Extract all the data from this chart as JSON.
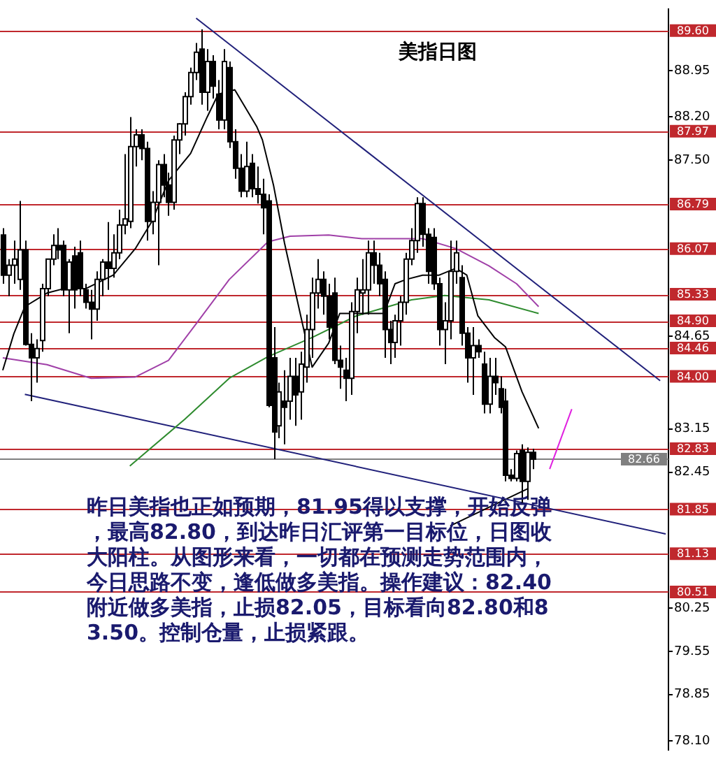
{
  "chart_data": {
    "type": "candlestick",
    "title": "美指日图",
    "categories": [
      null,
      null,
      null,
      null,
      null,
      null,
      null,
      null,
      null,
      null,
      null,
      null,
      null,
      null,
      null,
      null,
      null,
      null,
      null,
      null,
      null,
      null,
      null,
      null,
      null,
      null,
      null,
      null,
      null,
      null,
      null,
      null,
      null,
      null,
      null,
      null,
      null,
      null,
      null,
      null,
      null,
      null,
      null,
      null,
      null,
      null,
      null,
      null,
      null,
      null,
      null,
      null,
      null,
      null,
      null,
      null,
      null,
      null,
      null,
      null,
      null,
      null,
      null,
      null,
      null,
      null,
      null,
      null,
      null,
      null,
      null,
      null,
      null,
      null,
      null,
      null,
      null,
      null,
      null,
      null,
      null,
      null,
      null,
      null,
      null,
      null,
      null,
      null,
      null,
      null,
      null,
      null,
      null,
      null,
      null,
      null,
      null,
      null,
      null,
      null,
      null,
      null,
      null,
      null,
      null,
      null,
      null,
      null,
      null,
      null,
      null,
      null,
      null,
      null,
      null,
      null,
      null,
      null,
      null,
      null,
      null
    ],
    "ohlc": [
      [
        86.29,
        86.4,
        85.5,
        85.64
      ],
      [
        85.64,
        85.9,
        85.3,
        85.8
      ],
      [
        85.8,
        86.2,
        85.5,
        85.9
      ],
      [
        85.57,
        86.84,
        85.4,
        86.05
      ],
      [
        86.05,
        86.2,
        84.5,
        84.52
      ],
      [
        84.52,
        84.7,
        83.6,
        84.3
      ],
      [
        84.3,
        84.6,
        83.9,
        84.45
      ],
      [
        84.58,
        85.5,
        84.4,
        85.42
      ],
      [
        85.42,
        85.9,
        85.3,
        85.9
      ],
      [
        85.9,
        86.3,
        85.8,
        86.12
      ],
      [
        86.12,
        86.4,
        85.9,
        86.05
      ],
      [
        86.12,
        86.2,
        85.3,
        85.4
      ],
      [
        85.4,
        85.9,
        84.7,
        85.85
      ],
      [
        85.95,
        86.1,
        85.1,
        85.4
      ],
      [
        86.0,
        86.2,
        85.3,
        85.42
      ],
      [
        85.4,
        85.5,
        85.1,
        85.2
      ],
      [
        85.2,
        85.4,
        84.6,
        85.09
      ],
      [
        85.09,
        85.7,
        84.9,
        85.57
      ],
      [
        85.57,
        85.9,
        85.3,
        85.85
      ],
      [
        85.85,
        86.5,
        85.4,
        85.75
      ],
      [
        85.75,
        86.3,
        85.6,
        86.0
      ],
      [
        86.0,
        86.7,
        85.9,
        86.45
      ],
      [
        86.45,
        87.6,
        86.3,
        86.55
      ],
      [
        86.51,
        88.2,
        86.4,
        87.72
      ],
      [
        87.72,
        88.0,
        87.4,
        87.91
      ],
      [
        87.91,
        88.0,
        87.5,
        87.69
      ],
      [
        87.69,
        87.8,
        86.2,
        86.51
      ],
      [
        86.51,
        87.0,
        86.3,
        86.82
      ],
      [
        86.82,
        87.5,
        85.8,
        87.43
      ],
      [
        87.43,
        87.6,
        86.9,
        87.1
      ],
      [
        87.1,
        87.3,
        86.6,
        86.82
      ],
      [
        86.82,
        87.9,
        86.7,
        87.83
      ],
      [
        87.83,
        88.1,
        87.6,
        88.09
      ],
      [
        88.09,
        88.6,
        87.9,
        88.53
      ],
      [
        88.53,
        89.0,
        88.4,
        88.92
      ],
      [
        88.92,
        89.4,
        88.8,
        89.25
      ],
      [
        89.3,
        89.62,
        88.4,
        88.6
      ],
      [
        88.6,
        89.3,
        88.3,
        89.1
      ],
      [
        89.1,
        89.2,
        88.5,
        88.7
      ],
      [
        88.57,
        88.8,
        88.0,
        88.15
      ],
      [
        88.15,
        89.3,
        88.0,
        89.1
      ],
      [
        89.0,
        89.1,
        87.7,
        87.8
      ],
      [
        87.8,
        88.0,
        87.2,
        87.37
      ],
      [
        87.37,
        87.6,
        86.9,
        87.0
      ],
      [
        87.0,
        87.8,
        86.9,
        87.4
      ],
      [
        87.45,
        87.6,
        86.9,
        87.04
      ],
      [
        87.04,
        87.4,
        86.8,
        86.95
      ],
      [
        86.95,
        87.2,
        86.3,
        86.73
      ],
      [
        86.84,
        86.95,
        83.5,
        83.53
      ],
      [
        84.3,
        84.8,
        82.66,
        83.1
      ],
      [
        83.2,
        83.9,
        83.0,
        83.75
      ],
      [
        83.6,
        84.1,
        82.9,
        83.5
      ],
      [
        83.6,
        84.3,
        83.3,
        84.0
      ],
      [
        84.0,
        84.3,
        83.2,
        83.7
      ],
      [
        83.75,
        84.4,
        83.3,
        84.2
      ],
      [
        84.15,
        85.0,
        83.9,
        84.76
      ],
      [
        84.76,
        85.6,
        84.3,
        85.35
      ],
      [
        85.35,
        85.9,
        85.1,
        85.57
      ],
      [
        85.57,
        85.7,
        85.0,
        85.3
      ],
      [
        85.3,
        85.5,
        84.6,
        84.8
      ],
      [
        85.35,
        85.6,
        84.2,
        84.26
      ],
      [
        84.26,
        84.5,
        83.8,
        84.15
      ],
      [
        84.1,
        84.3,
        83.6,
        83.97
      ],
      [
        83.97,
        85.2,
        83.7,
        85.05
      ],
      [
        85.05,
        85.6,
        84.7,
        85.4
      ],
      [
        85.35,
        85.9,
        85.0,
        85.4
      ],
      [
        85.4,
        86.2,
        85.0,
        86.0
      ],
      [
        86.0,
        86.2,
        85.5,
        85.8
      ],
      [
        85.8,
        86.0,
        85.3,
        85.5
      ],
      [
        85.57,
        85.7,
        84.3,
        84.76
      ],
      [
        84.76,
        84.9,
        84.2,
        84.55
      ],
      [
        84.55,
        85.0,
        84.3,
        84.9
      ],
      [
        84.9,
        85.3,
        84.5,
        85.2
      ],
      [
        85.2,
        86.0,
        85.0,
        85.9
      ],
      [
        85.9,
        86.4,
        85.8,
        86.2
      ],
      [
        86.2,
        86.9,
        86.0,
        86.8
      ],
      [
        86.8,
        86.9,
        86.1,
        86.3
      ],
      [
        86.3,
        86.4,
        85.5,
        85.7
      ],
      [
        86.25,
        86.4,
        85.4,
        85.5
      ],
      [
        85.5,
        85.6,
        84.5,
        84.76
      ],
      [
        84.76,
        85.2,
        84.2,
        84.9
      ],
      [
        84.9,
        86.2,
        84.6,
        85.7
      ],
      [
        85.7,
        86.2,
        85.5,
        86.0
      ],
      [
        85.6,
        85.8,
        84.5,
        84.7
      ],
      [
        84.7,
        84.8,
        83.9,
        84.3
      ],
      [
        84.3,
        84.8,
        83.7,
        84.5
      ],
      [
        84.5,
        84.6,
        84.3,
        84.4
      ],
      [
        84.2,
        84.4,
        83.4,
        83.55
      ],
      [
        83.55,
        84.3,
        83.4,
        84.0
      ],
      [
        84.0,
        84.3,
        83.7,
        83.9
      ],
      [
        83.8,
        84.0,
        83.4,
        83.5
      ],
      [
        83.6,
        83.8,
        82.3,
        82.4
      ],
      [
        82.4,
        82.5,
        82.3,
        82.35
      ],
      [
        82.35,
        82.8,
        82.3,
        82.75
      ],
      [
        82.8,
        82.9,
        81.95,
        82.3
      ],
      [
        82.3,
        82.85,
        82.0,
        82.77
      ],
      [
        82.77,
        82.83,
        82.5,
        82.66
      ],
      null,
      null,
      null,
      null,
      null,
      null,
      null,
      null,
      null,
      null,
      null,
      null,
      null,
      null,
      null,
      null,
      null,
      null,
      null,
      null,
      null,
      null,
      null,
      null
    ],
    "ylim": [
      77.95,
      89.95
    ],
    "yticks": [
      {
        "value": 88.95,
        "label": "88.95"
      },
      {
        "value": 88.2,
        "label": "88.20"
      },
      {
        "value": 87.5,
        "label": "87.50"
      },
      {
        "value": 84.65,
        "label": "84.65"
      },
      {
        "value": 83.15,
        "label": "83.15"
      },
      {
        "value": 82.45,
        "label": "82.45"
      },
      {
        "value": 80.25,
        "label": "80.25"
      },
      {
        "value": 79.55,
        "label": "79.55"
      },
      {
        "value": 78.85,
        "label": "78.85"
      },
      {
        "value": 78.1,
        "label": "78.10"
      }
    ],
    "tick_labels": "y",
    "series": [
      {
        "type": "line",
        "color": "#000000",
        "values": [
          84.1,
          null,
          84.69,
          null,
          85.13,
          null,
          null,
          null,
          85.35,
          null,
          null,
          85.42,
          null,
          null,
          null,
          85.42,
          null,
          null,
          null,
          null,
          85.64,
          null,
          null,
          null,
          86.07,
          null,
          null,
          86.51,
          null,
          null,
          87.17,
          null,
          null,
          null,
          87.61,
          null,
          null,
          88.2,
          null,
          88.57,
          null,
          null,
          88.64,
          null,
          null,
          null,
          88.04,
          87.83,
          null,
          87.1,
          null,
          86.16,
          null,
          null,
          null,
          null,
          84.15,
          null,
          null,
          84.54,
          null,
          85.02,
          null,
          null,
          null,
          85.02,
          null,
          null,
          null,
          85.02,
          null,
          85.5,
          null,
          85.57,
          null,
          null,
          85.64,
          null,
          null,
          85.64,
          null,
          null,
          85.75,
          null,
          85.64,
          null,
          84.98,
          null,
          null,
          84.63,
          null,
          84.48,
          null,
          null,
          83.75,
          null,
          null,
          83.16,
          null,
          null,
          null,
          null,
          null,
          null,
          null,
          null,
          null,
          null,
          null,
          null,
          null,
          null,
          null,
          null,
          null,
          null,
          null,
          null,
          null,
          null,
          null
        ]
      },
      {
        "type": "line",
        "color": "#a040a8",
        "values": [
          84.3,
          null,
          null,
          null,
          null,
          null,
          null,
          null,
          84.19,
          null,
          null,
          null,
          null,
          null,
          null,
          null,
          83.97,
          null,
          null,
          null,
          null,
          null,
          null,
          null,
          83.99,
          null,
          null,
          null,
          null,
          null,
          84.26,
          null,
          null,
          null,
          null,
          84.85,
          null,
          null,
          null,
          null,
          null,
          85.57,
          null,
          null,
          null,
          null,
          null,
          null,
          86.18,
          null,
          null,
          null,
          86.27,
          null,
          null,
          null,
          null,
          null,
          null,
          86.29,
          null,
          null,
          null,
          null,
          null,
          86.23,
          null,
          null,
          null,
          null,
          null,
          null,
          null,
          null,
          null,
          null,
          86.23,
          null,
          null,
          null,
          null,
          null,
          86.07,
          null,
          null,
          null,
          null,
          null,
          85.79,
          null,
          null,
          null,
          null,
          85.5,
          null,
          null,
          null,
          85.13,
          null,
          null,
          null,
          null,
          null,
          null,
          null,
          null,
          null,
          null,
          null,
          null,
          null,
          null,
          null,
          null,
          null,
          null,
          null,
          null,
          null,
          null,
          null
        ]
      },
      {
        "type": "line",
        "color": "#2e8b2e",
        "values": [
          null,
          null,
          null,
          null,
          null,
          null,
          null,
          null,
          null,
          null,
          null,
          null,
          null,
          null,
          null,
          null,
          null,
          null,
          null,
          null,
          null,
          null,
          null,
          82.55,
          null,
          null,
          null,
          null,
          null,
          null,
          null,
          null,
          null,
          83.31,
          null,
          null,
          null,
          null,
          null,
          null,
          null,
          83.97,
          null,
          null,
          null,
          null,
          null,
          null,
          84.32,
          null,
          null,
          null,
          null,
          null,
          null,
          null,
          84.63,
          null,
          null,
          null,
          null,
          null,
          null,
          null,
          84.98,
          null,
          null,
          null,
          null,
          null,
          null,
          null,
          null,
          null,
          85.24,
          null,
          null,
          null,
          null,
          null,
          85.31,
          null,
          null,
          null,
          null,
          null,
          null,
          null,
          85.24,
          null,
          null,
          null,
          null,
          null,
          null,
          null,
          null,
          85.02,
          null,
          null,
          null,
          null,
          null,
          null,
          null,
          null,
          null,
          null,
          null,
          null,
          null,
          null,
          null,
          null,
          null,
          null,
          null,
          null,
          null,
          null,
          null
        ]
      },
      {
        "type": "line",
        "color": "#20207a",
        "values": [
          null,
          null,
          null,
          null,
          null,
          null,
          null,
          null,
          null,
          null,
          null,
          null,
          null,
          null,
          null,
          null,
          null,
          null,
          null,
          null,
          null,
          null,
          null,
          null,
          null,
          null,
          null,
          null,
          null,
          null,
          null,
          null,
          null,
          null,
          null,
          89.8,
          null,
          null,
          null,
          null,
          null,
          null,
          null,
          null,
          null,
          null,
          null,
          null,
          null,
          null,
          null,
          null,
          null,
          null,
          null,
          null,
          null,
          null,
          null,
          null,
          null,
          null,
          null,
          null,
          null,
          null,
          null,
          null,
          null,
          null,
          null,
          null,
          null,
          null,
          null,
          null,
          null,
          null,
          null,
          null,
          null,
          null,
          null,
          null,
          null,
          null,
          null,
          null,
          null,
          null,
          null,
          null,
          null,
          null,
          null,
          null,
          null,
          null,
          null,
          null,
          null,
          null,
          null,
          null,
          null,
          null,
          null,
          null,
          null,
          null,
          null,
          null,
          null,
          null,
          null,
          null,
          null,
          null,
          null,
          83.93,
          null
        ]
      },
      {
        "type": "line",
        "color": "#20207a",
        "values": [
          null,
          null,
          null,
          null,
          83.71,
          null,
          null,
          null,
          null,
          null,
          null,
          null,
          null,
          null,
          null,
          null,
          null,
          null,
          null,
          null,
          null,
          null,
          null,
          null,
          null,
          null,
          null,
          null,
          null,
          null,
          null,
          null,
          null,
          null,
          null,
          null,
          null,
          null,
          null,
          null,
          null,
          null,
          null,
          null,
          null,
          null,
          null,
          null,
          null,
          null,
          null,
          null,
          null,
          null,
          null,
          null,
          null,
          null,
          null,
          null,
          null,
          null,
          null,
          null,
          null,
          null,
          null,
          null,
          null,
          null,
          null,
          null,
          null,
          null,
          null,
          null,
          null,
          null,
          null,
          null,
          null,
          null,
          null,
          null,
          null,
          null,
          null,
          null,
          null,
          null,
          null,
          null,
          null,
          null,
          null,
          null,
          null,
          null,
          null,
          null,
          null,
          null,
          null,
          null,
          null,
          null,
          null,
          null,
          null,
          null,
          null,
          null,
          null,
          null,
          null,
          null,
          null,
          null,
          null,
          null,
          81.45
        ]
      },
      {
        "type": "line",
        "color": "#000000",
        "values": [
          null,
          null,
          null,
          null,
          null,
          null,
          null,
          null,
          null,
          null,
          null,
          null,
          null,
          null,
          null,
          null,
          null,
          null,
          null,
          null,
          null,
          null,
          null,
          null,
          null,
          null,
          null,
          null,
          null,
          null,
          null,
          null,
          null,
          null,
          null,
          null,
          null,
          null,
          null,
          null,
          null,
          null,
          null,
          null,
          null,
          null,
          null,
          null,
          null,
          null,
          null,
          null,
          null,
          null,
          null,
          null,
          null,
          null,
          null,
          null,
          null,
          null,
          null,
          null,
          null,
          null,
          null,
          null,
          null,
          null,
          null,
          null,
          null,
          null,
          null,
          null,
          null,
          null,
          null,
          null,
          null,
          81.58,
          null,
          null,
          null,
          null,
          null,
          null,
          null,
          null,
          null,
          null,
          null,
          null,
          null,
          82.18,
          null,
          null,
          null,
          null,
          null,
          null,
          null,
          null,
          null,
          null,
          null,
          null,
          null,
          null,
          null,
          null,
          null,
          null,
          null,
          null,
          null,
          null,
          null,
          null,
          null
        ]
      },
      {
        "type": "line",
        "color": "#e020e0",
        "values": [
          null,
          null,
          null,
          null,
          null,
          null,
          null,
          null,
          null,
          null,
          null,
          null,
          null,
          null,
          null,
          null,
          null,
          null,
          null,
          null,
          null,
          null,
          null,
          null,
          null,
          null,
          null,
          null,
          null,
          null,
          null,
          null,
          null,
          null,
          null,
          null,
          null,
          null,
          null,
          null,
          null,
          null,
          null,
          null,
          null,
          null,
          null,
          null,
          null,
          null,
          null,
          null,
          null,
          null,
          null,
          null,
          null,
          null,
          null,
          null,
          null,
          null,
          null,
          null,
          null,
          null,
          null,
          null,
          null,
          null,
          null,
          null,
          null,
          null,
          null,
          null,
          null,
          null,
          null,
          null,
          null,
          null,
          null,
          null,
          null,
          null,
          null,
          null,
          null,
          null,
          null,
          null,
          null,
          null,
          null,
          null,
          null,
          null,
          null,
          82.5,
          null,
          null,
          null,
          83.47,
          null,
          null,
          null,
          null,
          null,
          null,
          null,
          null,
          null,
          null,
          null,
          null,
          null,
          null,
          null,
          null,
          null
        ]
      }
    ],
    "ref_lines": [
      {
        "axis": "y",
        "value": 89.6,
        "label": "89.60",
        "color": "#c0282d"
      },
      {
        "axis": "y",
        "value": 87.97,
        "label": "87.97",
        "color": "#c0282d"
      },
      {
        "axis": "y",
        "value": 86.79,
        "label": "86.79",
        "color": "#c0282d"
      },
      {
        "axis": "y",
        "value": 86.07,
        "label": "86.07",
        "color": "#c0282d"
      },
      {
        "axis": "y",
        "value": 85.33,
        "label": "85.33",
        "color": "#c0282d"
      },
      {
        "axis": "y",
        "value": 84.9,
        "label": "84.90",
        "color": "#c0282d"
      },
      {
        "axis": "y",
        "value": 84.46,
        "label": "84.46",
        "color": "#c0282d"
      },
      {
        "axis": "y",
        "value": 84.0,
        "label": "84.00",
        "color": "#c0282d"
      },
      {
        "axis": "y",
        "value": 82.83,
        "label": "82.83",
        "color": "#c0282d"
      },
      {
        "axis": "y",
        "value": 82.66,
        "label": "82.66",
        "color": "#808080"
      },
      {
        "axis": "y",
        "value": 81.85,
        "label": "81.85",
        "color": "#c0282d"
      },
      {
        "axis": "y",
        "value": 81.13,
        "label": "81.13",
        "color": "#c0282d"
      },
      {
        "axis": "y",
        "value": 80.51,
        "label": "80.51",
        "color": "#c0282d"
      }
    ],
    "annotations": [
      "昨日美指也正如预期，81.95得以支撑，开始反弹，最高82.80，到达昨日汇评第一目标位，日图收大阳柱。从图形来看，一切都在预测走势范围内，今日思路不变，逢低做多美指。操作建议：82.40附近做多美指，止损82.05，目标看向82.80和83.50。控制仓量，止损紧跟。"
    ]
  }
}
